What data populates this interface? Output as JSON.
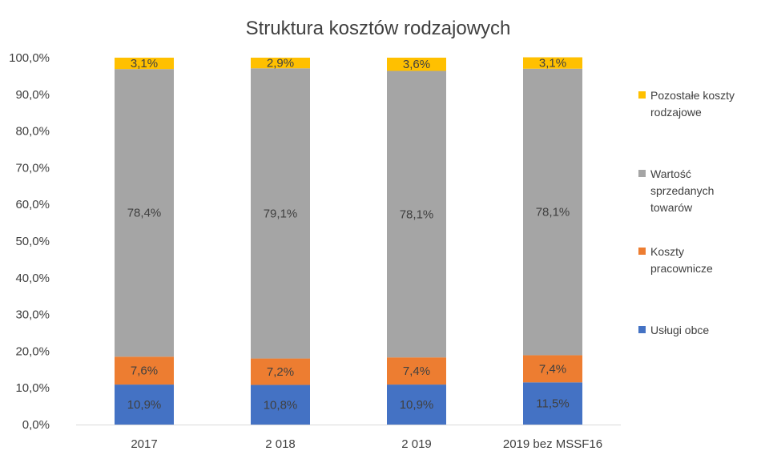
{
  "chart_data": {
    "type": "bar",
    "stacked": true,
    "title": "Struktura kosztów rodzajowych",
    "categories": [
      "2017",
      "2 018",
      "2 019",
      "2019 bez MSSF16"
    ],
    "series": [
      {
        "name": "Usługi obce",
        "values": [
          10.9,
          10.8,
          10.9,
          11.5
        ],
        "labels": [
          "10,9%",
          "10,8%",
          "10,9%",
          "11,5%"
        ],
        "color": "#4472C4"
      },
      {
        "name": "Koszty pracownicze",
        "values": [
          7.6,
          7.2,
          7.4,
          7.4
        ],
        "labels": [
          "7,6%",
          "7,2%",
          "7,4%",
          "7,4%"
        ],
        "color": "#ED7D31"
      },
      {
        "name": "Wartość sprzedanych towarów",
        "values": [
          78.4,
          79.1,
          78.1,
          78.1
        ],
        "labels": [
          "78,4%",
          "79,1%",
          "78,1%",
          "78,1%"
        ],
        "color": "#A5A5A5"
      },
      {
        "name": "Pozostałe koszty rodzajowe",
        "values": [
          3.1,
          2.9,
          3.6,
          3.1
        ],
        "labels": [
          "3,1%",
          "2,9%",
          "3,6%",
          "3,1%"
        ],
        "color": "#FFC000"
      }
    ],
    "ylim": [
      0,
      100
    ],
    "yticks": [
      "0,0%",
      "10,0%",
      "20,0%",
      "30,0%",
      "40,0%",
      "50,0%",
      "60,0%",
      "70,0%",
      "80,0%",
      "90,0%",
      "100,0%"
    ],
    "grid": false,
    "legend_position": "right",
    "legend": [
      {
        "lines": [
          "Pozostałe koszty",
          "rodzajowe"
        ],
        "color": "#FFC000"
      },
      {
        "lines": [
          "Wartość",
          "sprzedanych",
          "towarów"
        ],
        "color": "#A5A5A5"
      },
      {
        "lines": [
          "Koszty",
          "pracownicze"
        ],
        "color": "#ED7D31"
      },
      {
        "lines": [
          "Usługi obce"
        ],
        "color": "#4472C4"
      }
    ]
  }
}
